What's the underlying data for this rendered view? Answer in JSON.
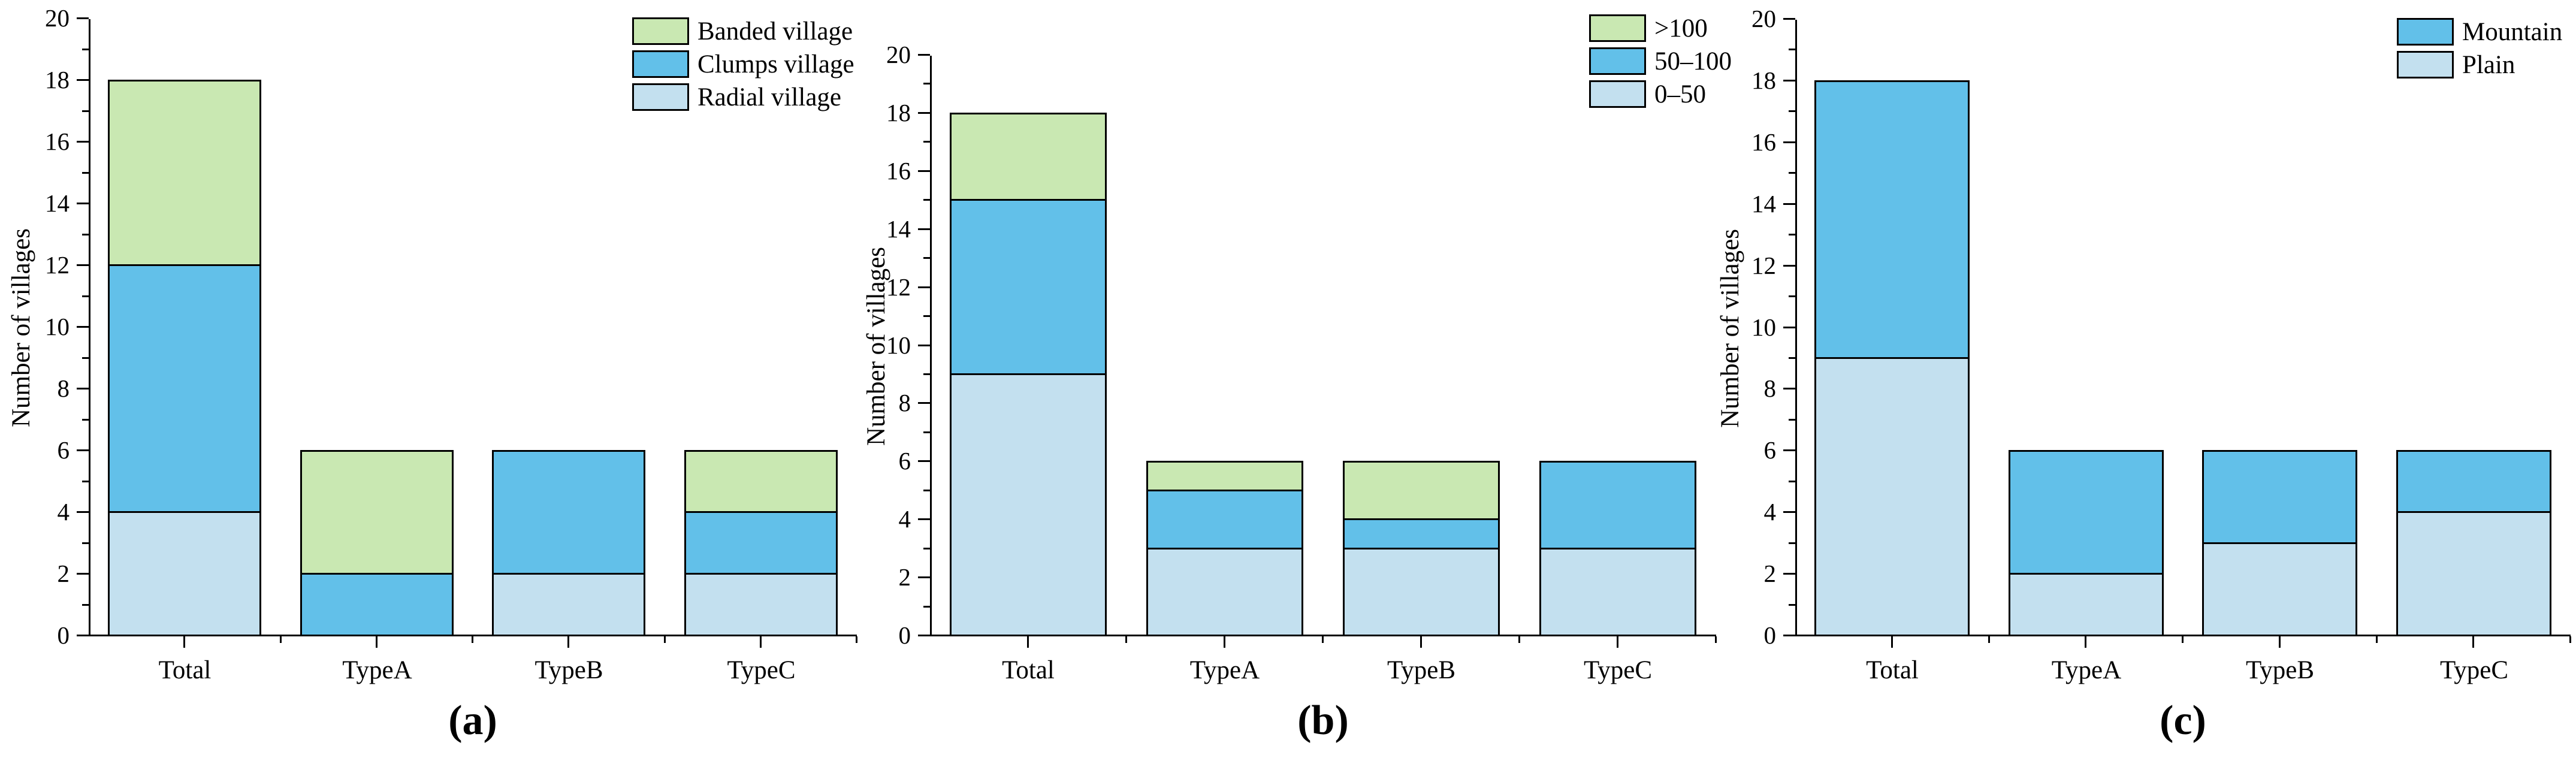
{
  "chart_data": [
    {
      "type": "bar",
      "stacked": true,
      "caption": "(a)",
      "ylabel": "Number of villages",
      "xlabel": "",
      "categories": [
        "Total",
        "TypeA",
        "TypeB",
        "TypeC"
      ],
      "series": [
        {
          "name": "Radial village",
          "color": "#c3e0ef",
          "values": [
            4,
            0,
            2,
            2
          ]
        },
        {
          "name": "Clumps village",
          "color": "#62c0e9",
          "values": [
            8,
            2,
            4,
            2
          ]
        },
        {
          "name": "Banded village",
          "color": "#c9e8b2",
          "values": [
            6,
            4,
            0,
            2
          ]
        }
      ],
      "legend": [
        {
          "label": "Banded village",
          "color": "#c9e8b2"
        },
        {
          "label": "Clumps village",
          "color": "#62c0e9"
        },
        {
          "label": "Radial village",
          "color": "#c3e0ef"
        }
      ],
      "ylim": [
        0,
        20
      ],
      "yticks": [
        0,
        2,
        4,
        6,
        8,
        10,
        12,
        14,
        16,
        18,
        20
      ],
      "legend_position": "top-right",
      "grid": false
    },
    {
      "type": "bar",
      "stacked": true,
      "caption": "(b)",
      "ylabel": "Number of villages",
      "xlabel": "",
      "categories": [
        "Total",
        "TypeA",
        "TypeB",
        "TypeC"
      ],
      "series": [
        {
          "name": "0–50",
          "color": "#c3e0ef",
          "values": [
            9,
            3,
            3,
            3
          ]
        },
        {
          "name": "50–100",
          "color": "#62c0e9",
          "values": [
            6,
            2,
            1,
            3
          ]
        },
        {
          "name": ">100",
          "color": "#c9e8b2",
          "values": [
            3,
            1,
            2,
            0
          ]
        }
      ],
      "legend": [
        {
          "label": ">100",
          "color": "#c9e8b2"
        },
        {
          "label": "50–100",
          "color": "#62c0e9"
        },
        {
          "label": "0–50",
          "color": "#c3e0ef"
        }
      ],
      "ylim": [
        0,
        20
      ],
      "yticks": [
        0,
        2,
        4,
        6,
        8,
        10,
        12,
        14,
        16,
        18,
        20
      ],
      "legend_position": "top-right",
      "grid": false
    },
    {
      "type": "bar",
      "stacked": true,
      "caption": "(c)",
      "ylabel": "Number of villages",
      "xlabel": "",
      "categories": [
        "Total",
        "TypeA",
        "TypeB",
        "TypeC"
      ],
      "series": [
        {
          "name": "Plain",
          "color": "#c3e0ef",
          "values": [
            9,
            2,
            3,
            4
          ]
        },
        {
          "name": "Mountain",
          "color": "#62c0e9",
          "values": [
            9,
            4,
            3,
            2
          ]
        }
      ],
      "legend": [
        {
          "label": "Mountain",
          "color": "#62c0e9"
        },
        {
          "label": "Plain",
          "color": "#c3e0ef"
        }
      ],
      "ylim": [
        0,
        20
      ],
      "yticks": [
        0,
        2,
        4,
        6,
        8,
        10,
        12,
        14,
        16,
        18,
        20
      ],
      "legend_position": "top-right",
      "grid": false
    }
  ],
  "axis_color": "#000000",
  "bar_border_color": "#000000"
}
